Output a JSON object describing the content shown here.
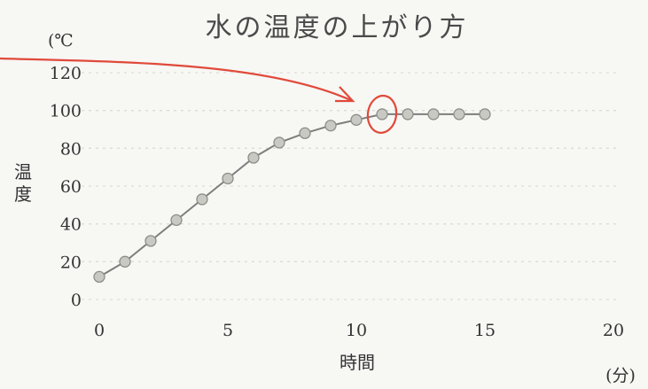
{
  "chart_data": {
    "type": "line",
    "title": "水の温度の上がり方",
    "xlabel": "時間",
    "xunit": "(分)",
    "ylabel": "温度",
    "yunit": "(℃",
    "xlim": [
      0,
      20
    ],
    "ylim": [
      0,
      120
    ],
    "xticks": [
      0,
      5,
      10,
      15,
      20
    ],
    "yticks": [
      0,
      20,
      40,
      60,
      80,
      100,
      120
    ],
    "grid": true,
    "series": [
      {
        "x": [
          0,
          1,
          2,
          3,
          4,
          5,
          6,
          7,
          8,
          9,
          10,
          11,
          12,
          13,
          14,
          15
        ],
        "y": [
          12,
          20,
          31,
          42,
          53,
          64,
          75,
          83,
          88,
          92,
          95,
          98,
          98,
          98,
          98,
          98
        ]
      }
    ],
    "annotation": {
      "type": "arrow-and-circle",
      "target_x": 11,
      "target_y": 98,
      "color": "#e04a3a"
    }
  }
}
